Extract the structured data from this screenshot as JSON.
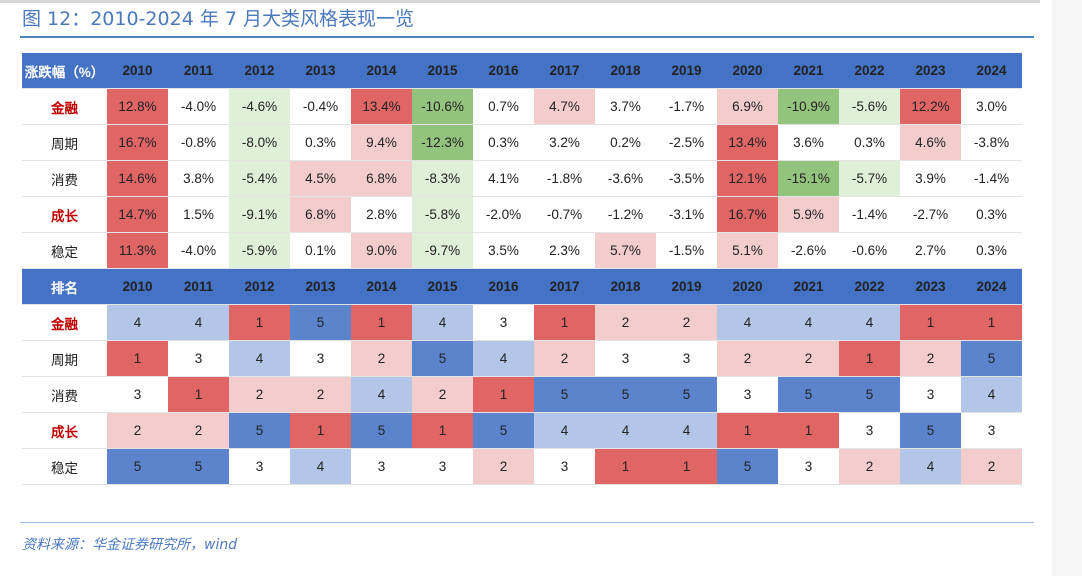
{
  "title": "图 12：2010-2024 年 7 月大类风格表现一览",
  "source": "资料来源：华金证券研究所，wind",
  "years": [
    "2010",
    "2011",
    "2012",
    "2013",
    "2014",
    "2015",
    "2016",
    "2017",
    "2018",
    "2019",
    "2020",
    "2021",
    "2022",
    "2023",
    "2024"
  ],
  "returns_table": {
    "header_label": "涨跌幅（%）",
    "rows": [
      {
        "style": "金融",
        "bold": true,
        "values": [
          "12.8%",
          "-4.0%",
          "-4.6%",
          "-0.4%",
          "13.4%",
          "-10.6%",
          "0.7%",
          "4.7%",
          "3.7%",
          "-1.7%",
          "6.9%",
          "-10.9%",
          "-5.6%",
          "12.2%",
          "3.0%"
        ]
      },
      {
        "style": "周期",
        "bold": false,
        "values": [
          "16.7%",
          "-0.8%",
          "-8.0%",
          "0.3%",
          "9.4%",
          "-12.3%",
          "0.3%",
          "3.2%",
          "0.2%",
          "-2.5%",
          "13.4%",
          "3.6%",
          "0.3%",
          "4.6%",
          "-3.8%"
        ]
      },
      {
        "style": "消费",
        "bold": false,
        "values": [
          "14.6%",
          "3.8%",
          "-5.4%",
          "4.5%",
          "6.8%",
          "-8.3%",
          "4.1%",
          "-1.8%",
          "-3.6%",
          "-3.5%",
          "12.1%",
          "-15.1%",
          "-5.7%",
          "3.9%",
          "-1.4%"
        ]
      },
      {
        "style": "成长",
        "bold": true,
        "values": [
          "14.7%",
          "1.5%",
          "-9.1%",
          "6.8%",
          "2.8%",
          "-5.8%",
          "-2.0%",
          "-0.7%",
          "-1.2%",
          "-3.1%",
          "16.7%",
          "5.9%",
          "-1.4%",
          "-2.7%",
          "0.3%"
        ]
      },
      {
        "style": "稳定",
        "bold": false,
        "values": [
          "11.3%",
          "-4.0%",
          "-5.9%",
          "0.1%",
          "9.0%",
          "-9.7%",
          "3.5%",
          "2.3%",
          "5.7%",
          "-1.5%",
          "5.1%",
          "-2.6%",
          "-0.6%",
          "2.7%",
          "0.3%"
        ]
      }
    ]
  },
  "rank_table": {
    "header_label": "排名",
    "rows": [
      {
        "style": "金融",
        "bold": true,
        "values": [
          "4",
          "4",
          "1",
          "5",
          "1",
          "4",
          "3",
          "1",
          "2",
          "2",
          "4",
          "4",
          "4",
          "1",
          "1"
        ]
      },
      {
        "style": "周期",
        "bold": false,
        "values": [
          "1",
          "3",
          "4",
          "3",
          "2",
          "5",
          "4",
          "2",
          "3",
          "3",
          "2",
          "2",
          "1",
          "2",
          "5"
        ]
      },
      {
        "style": "消费",
        "bold": false,
        "values": [
          "3",
          "1",
          "2",
          "2",
          "4",
          "2",
          "1",
          "5",
          "5",
          "5",
          "3",
          "5",
          "5",
          "3",
          "4"
        ]
      },
      {
        "style": "成长",
        "bold": true,
        "values": [
          "2",
          "2",
          "5",
          "1",
          "5",
          "1",
          "5",
          "4",
          "4",
          "4",
          "1",
          "1",
          "3",
          "5",
          "3"
        ]
      },
      {
        "style": "稳定",
        "bold": false,
        "values": [
          "5",
          "5",
          "3",
          "4",
          "3",
          "3",
          "2",
          "3",
          "1",
          "1",
          "5",
          "3",
          "2",
          "4",
          "2"
        ]
      }
    ]
  },
  "colors": {
    "header_bg": "#4472c4",
    "title_blue": "#4a79be",
    "strong_red": "#e06666",
    "light_red": "#f3cccc",
    "strong_green": "#93c47d",
    "light_green": "#dff0d8",
    "strong_blue": "#5b84cc",
    "light_blue": "#b3c6e7"
  }
}
